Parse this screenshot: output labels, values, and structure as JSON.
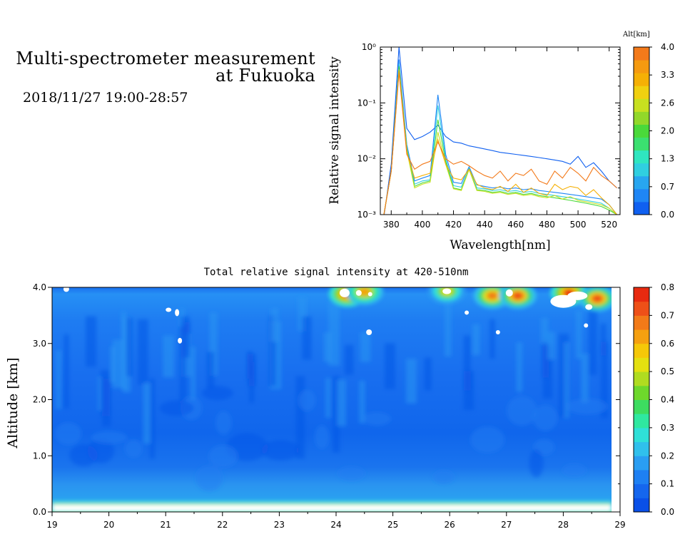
{
  "header": {
    "title_line1": "Multi-spectrometer measurement",
    "title_line2": "at Fukuoka",
    "date_range": "2018/11/27 19:00-28:57"
  },
  "chart_data": [
    {
      "type": "line",
      "xlabel": "Wavelength[nm]",
      "ylabel": "Relative signal intensity",
      "xlim": [
        373,
        527
      ],
      "ylim": [
        0.001,
        1
      ],
      "yscale": "log",
      "x_ticks": [
        "380",
        "400",
        "420",
        "440",
        "460",
        "480",
        "500",
        "520"
      ],
      "y_ticks": [
        "10⁻³",
        "10⁻²",
        "10⁻¹",
        "10⁰"
      ],
      "colorbar": {
        "label": "Alt[km]",
        "ticks": [
          "0.0",
          "0.7",
          "1.3",
          "2.0",
          "2.6",
          "3.3",
          "4.0"
        ],
        "colors": [
          "#1060f0",
          "#1f86f5",
          "#28a6f0",
          "#30cfe0",
          "#2fe6c0",
          "#3be070",
          "#4ad93a",
          "#92d82a",
          "#c8e020",
          "#f0d010",
          "#f5b005",
          "#f59a10",
          "#f37a1a"
        ]
      },
      "x": [
        375,
        380,
        385,
        390,
        395,
        400,
        405,
        410,
        415,
        420,
        425,
        430,
        435,
        440,
        445,
        450,
        455,
        460,
        465,
        470,
        475,
        480,
        485,
        490,
        495,
        500,
        505,
        510,
        515,
        520,
        525
      ],
      "series": [
        {
          "color": "#1060f0",
          "values": [
            0.0008,
            0.008,
            1.0,
            0.035,
            0.022,
            0.025,
            0.03,
            0.04,
            0.025,
            0.02,
            0.019,
            0.017,
            0.016,
            0.015,
            0.014,
            0.013,
            0.0125,
            0.012,
            0.0115,
            0.011,
            0.0105,
            0.01,
            0.0095,
            0.009,
            0.008,
            0.011,
            0.007,
            0.0085,
            0.006,
            0.004,
            0.003
          ]
        },
        {
          "color": "#1f86f5",
          "values": [
            0.0009,
            0.006,
            0.6,
            0.018,
            0.004,
            0.0045,
            0.005,
            0.14,
            0.012,
            0.0038,
            0.0036,
            0.0072,
            0.0034,
            0.0032,
            0.003,
            0.0031,
            0.0029,
            0.003,
            0.0028,
            0.0029,
            0.0027,
            0.0026,
            0.0025,
            0.0024,
            0.0023,
            0.0022,
            0.0021,
            0.002,
            0.0019,
            0.0015,
            0.001
          ]
        },
        {
          "color": "#30cfe0",
          "values": [
            0.0009,
            0.006,
            0.5,
            0.016,
            0.0035,
            0.004,
            0.0042,
            0.09,
            0.01,
            0.0033,
            0.0031,
            0.0068,
            0.003,
            0.0029,
            0.0027,
            0.0028,
            0.0026,
            0.0027,
            0.0025,
            0.0026,
            0.0024,
            0.0023,
            0.0022,
            0.0021,
            0.002,
            0.0019,
            0.0018,
            0.0017,
            0.0016,
            0.0013,
            0.001
          ]
        },
        {
          "color": "#4ad93a",
          "values": [
            0.0009,
            0.006,
            0.45,
            0.015,
            0.0032,
            0.0037,
            0.004,
            0.05,
            0.009,
            0.003,
            0.0028,
            0.0065,
            0.0028,
            0.0027,
            0.0025,
            0.0026,
            0.0024,
            0.0025,
            0.0023,
            0.0024,
            0.0022,
            0.0021,
            0.002,
            0.0019,
            0.0018,
            0.0017,
            0.0016,
            0.0015,
            0.0014,
            0.0012,
            0.001
          ]
        },
        {
          "color": "#c8e020",
          "values": [
            0.0009,
            0.006,
            0.4,
            0.014,
            0.003,
            0.0035,
            0.0038,
            0.03,
            0.008,
            0.0029,
            0.0027,
            0.0064,
            0.0027,
            0.0026,
            0.0024,
            0.0025,
            0.0023,
            0.0024,
            0.0022,
            0.0023,
            0.0021,
            0.002,
            0.0022,
            0.0019,
            0.0021,
            0.0018,
            0.0017,
            0.0016,
            0.0015,
            0.0013,
            0.001
          ]
        },
        {
          "color": "#f5b005",
          "values": [
            0.0009,
            0.006,
            0.38,
            0.013,
            0.0045,
            0.005,
            0.0055,
            0.022,
            0.008,
            0.0045,
            0.0042,
            0.0065,
            0.0035,
            0.003,
            0.0028,
            0.0032,
            0.0026,
            0.0035,
            0.0025,
            0.003,
            0.0024,
            0.0022,
            0.0035,
            0.0028,
            0.0032,
            0.003,
            0.0022,
            0.0028,
            0.002,
            0.0015,
            0.001
          ]
        },
        {
          "color": "#f37a1a",
          "values": [
            0.0009,
            0.006,
            0.35,
            0.012,
            0.0065,
            0.008,
            0.009,
            0.02,
            0.01,
            0.008,
            0.009,
            0.0075,
            0.006,
            0.005,
            0.0045,
            0.006,
            0.004,
            0.0055,
            0.005,
            0.0065,
            0.004,
            0.0035,
            0.006,
            0.0045,
            0.007,
            0.0055,
            0.004,
            0.007,
            0.005,
            0.004,
            0.003
          ]
        }
      ]
    },
    {
      "type": "heatmap",
      "title": "Total relative signal intensity at 420-510nm",
      "ylabel": "Altitude [km]",
      "xlim": [
        19,
        29
      ],
      "ylim": [
        0,
        4
      ],
      "x_ticks": [
        "19",
        "20",
        "21",
        "22",
        "23",
        "24",
        "25",
        "26",
        "27",
        "28",
        "29"
      ],
      "y_ticks": [
        "0.0",
        "1.0",
        "2.0",
        "3.0",
        "4.0"
      ],
      "data_x_end": 28.85,
      "colorbar": {
        "ticks": [
          "0.0",
          "0.1",
          "0.2",
          "0.3",
          "0.4",
          "0.5",
          "0.6",
          "0.7",
          "0.8"
        ],
        "colors": [
          "#0a50e8",
          "#1566ee",
          "#1e80f3",
          "#2a9ef2",
          "#30c0ec",
          "#2fe0d8",
          "#2fe8a0",
          "#3ddc60",
          "#6ed82c",
          "#b0dc20",
          "#e4e010",
          "#f5c808",
          "#f5a010",
          "#f27a18",
          "#ee5018",
          "#e82a10"
        ]
      },
      "hotspots": [
        {
          "t": 24.2,
          "alt": 3.88,
          "level": 0.8
        },
        {
          "t": 24.5,
          "alt": 3.92,
          "level": 0.65
        },
        {
          "t": 25.95,
          "alt": 3.93,
          "level": 0.55
        },
        {
          "t": 26.75,
          "alt": 3.85,
          "level": 0.7
        },
        {
          "t": 27.2,
          "alt": 3.85,
          "level": 0.75
        },
        {
          "t": 28.1,
          "alt": 3.9,
          "level": 0.8
        },
        {
          "t": 28.6,
          "alt": 3.8,
          "level": 0.75
        }
      ]
    }
  ]
}
